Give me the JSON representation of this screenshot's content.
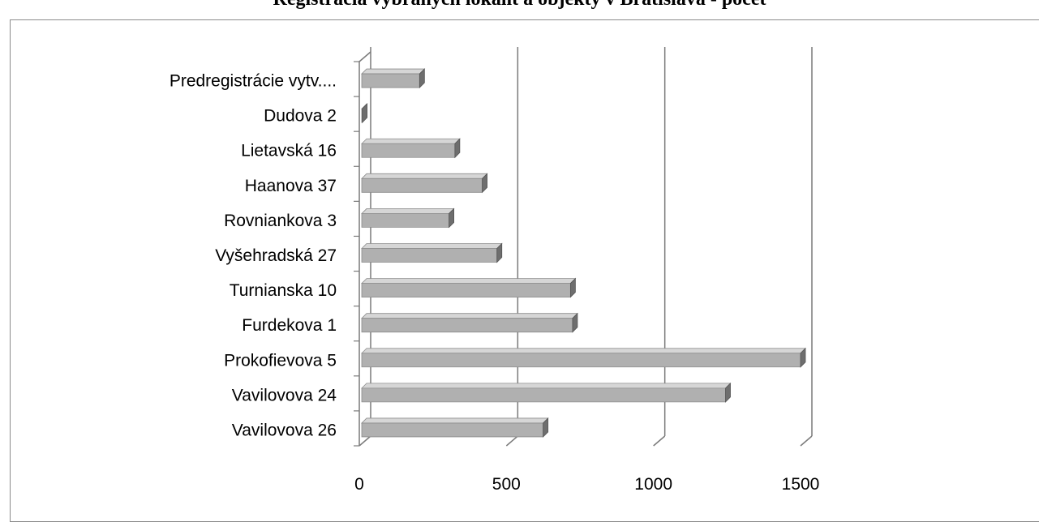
{
  "title": "Registrácia vybraných lokalít a objekty v Bratislava - počet",
  "chart_data": {
    "type": "bar",
    "orientation": "horizontal",
    "style": "3d-clustered-bar",
    "categories": [
      "Vavilovova 26",
      "Vavilovova 24",
      "Prokofievova 5",
      "Furdekova 1",
      "Turnianska 10",
      "Vyšehradská 27",
      "Rovniankova 3",
      "Haanova 37",
      "Lietavská 16",
      "Dudova 2",
      "Predregistrácie vytv...."
    ],
    "values": [
      625,
      1245,
      1500,
      725,
      718,
      468,
      305,
      418,
      325,
      10,
      205
    ],
    "xlim": [
      0,
      1500
    ],
    "xticks": [
      0,
      500,
      1000,
      1500
    ],
    "grid": true,
    "legend": "none",
    "colors": {
      "bar_front": "#b0b0b0",
      "bar_top": "#d6d6d6",
      "bar_side": "#6e6e6e",
      "grid": "#7a7a7a"
    }
  }
}
